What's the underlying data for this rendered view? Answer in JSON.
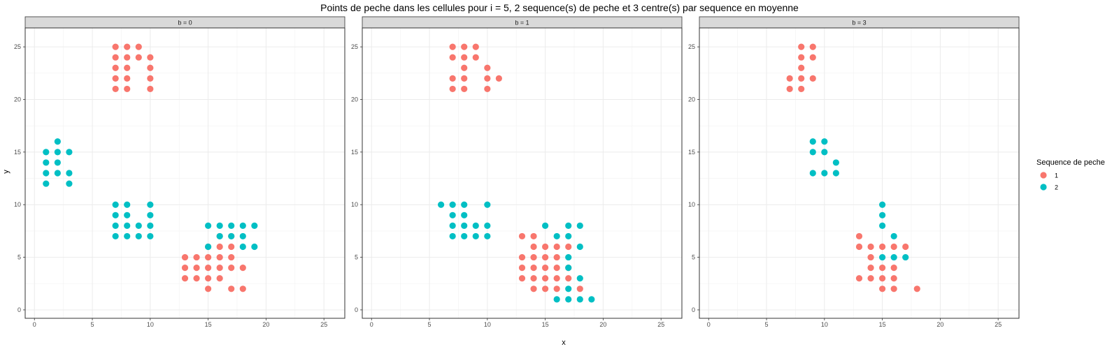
{
  "chart_data": {
    "type": "scatter",
    "title": "Points de peche dans les cellules pour i = 5, 2 sequence(s) de peche et 3 centre(s) par sequence en moyenne",
    "xlabel": "x",
    "ylabel": "y",
    "xlim": [
      -0.8,
      26.8
    ],
    "ylim": [
      -0.8,
      26.8
    ],
    "xticks": [
      0,
      5,
      10,
      15,
      20,
      25
    ],
    "yticks": [
      0,
      5,
      10,
      15,
      20,
      25
    ],
    "grid": true,
    "legend": {
      "title": "Sequence de peche",
      "position": "right",
      "entries": [
        {
          "label": "1",
          "color": "#F8766D"
        },
        {
          "label": "2",
          "color": "#00BFC4"
        }
      ]
    },
    "panels": [
      {
        "label": "b = 0",
        "series": [
          {
            "name": "1",
            "points": [
              [
                7,
                25
              ],
              [
                8,
                25
              ],
              [
                9,
                25
              ],
              [
                7,
                24
              ],
              [
                8,
                24
              ],
              [
                9,
                24
              ],
              [
                10,
                24
              ],
              [
                7,
                23
              ],
              [
                8,
                23
              ],
              [
                10,
                23
              ],
              [
                7,
                22
              ],
              [
                8,
                22
              ],
              [
                10,
                22
              ],
              [
                7,
                21
              ],
              [
                8,
                21
              ],
              [
                10,
                21
              ],
              [
                16,
                7
              ],
              [
                17,
                7
              ],
              [
                15,
                6
              ],
              [
                16,
                6
              ],
              [
                17,
                6
              ],
              [
                13,
                5
              ],
              [
                14,
                5
              ],
              [
                15,
                5
              ],
              [
                16,
                5
              ],
              [
                17,
                5
              ],
              [
                13,
                4
              ],
              [
                14,
                4
              ],
              [
                15,
                4
              ],
              [
                16,
                4
              ],
              [
                17,
                4
              ],
              [
                18,
                4
              ],
              [
                13,
                3
              ],
              [
                14,
                3
              ],
              [
                15,
                3
              ],
              [
                16,
                3
              ],
              [
                15,
                2
              ],
              [
                17,
                2
              ],
              [
                18,
                2
              ]
            ]
          },
          {
            "name": "2",
            "points": [
              [
                2,
                16
              ],
              [
                1,
                15
              ],
              [
                2,
                15
              ],
              [
                3,
                15
              ],
              [
                1,
                14
              ],
              [
                2,
                14
              ],
              [
                1,
                13
              ],
              [
                2,
                13
              ],
              [
                3,
                13
              ],
              [
                1,
                12
              ],
              [
                3,
                12
              ],
              [
                7,
                10
              ],
              [
                8,
                10
              ],
              [
                10,
                10
              ],
              [
                7,
                9
              ],
              [
                8,
                9
              ],
              [
                10,
                9
              ],
              [
                7,
                8
              ],
              [
                8,
                8
              ],
              [
                9,
                8
              ],
              [
                10,
                8
              ],
              [
                7,
                7
              ],
              [
                8,
                7
              ],
              [
                9,
                7
              ],
              [
                10,
                7
              ],
              [
                15,
                8
              ],
              [
                16,
                8
              ],
              [
                17,
                8
              ],
              [
                18,
                8
              ],
              [
                19,
                8
              ],
              [
                16,
                7
              ],
              [
                17,
                7
              ],
              [
                18,
                7
              ],
              [
                15,
                6
              ],
              [
                18,
                6
              ],
              [
                19,
                6
              ]
            ]
          }
        ]
      },
      {
        "label": "b = 1",
        "series": [
          {
            "name": "1",
            "points": [
              [
                7,
                25
              ],
              [
                8,
                25
              ],
              [
                9,
                25
              ],
              [
                7,
                24
              ],
              [
                8,
                24
              ],
              [
                9,
                24
              ],
              [
                8,
                23
              ],
              [
                10,
                23
              ],
              [
                7,
                22
              ],
              [
                8,
                22
              ],
              [
                10,
                22
              ],
              [
                11,
                22
              ],
              [
                7,
                21
              ],
              [
                8,
                21
              ],
              [
                10,
                21
              ],
              [
                13,
                7
              ],
              [
                14,
                7
              ],
              [
                14,
                6
              ],
              [
                15,
                6
              ],
              [
                16,
                6
              ],
              [
                17,
                6
              ],
              [
                13,
                5
              ],
              [
                14,
                5
              ],
              [
                15,
                5
              ],
              [
                16,
                5
              ],
              [
                13,
                4
              ],
              [
                14,
                4
              ],
              [
                15,
                4
              ],
              [
                16,
                4
              ],
              [
                17,
                4
              ],
              [
                13,
                3
              ],
              [
                14,
                3
              ],
              [
                15,
                3
              ],
              [
                16,
                3
              ],
              [
                17,
                3
              ],
              [
                14,
                2
              ],
              [
                15,
                2
              ],
              [
                16,
                2
              ],
              [
                18,
                2
              ]
            ]
          },
          {
            "name": "2",
            "points": [
              [
                6,
                10
              ],
              [
                7,
                10
              ],
              [
                8,
                10
              ],
              [
                10,
                10
              ],
              [
                7,
                9
              ],
              [
                8,
                9
              ],
              [
                7,
                8
              ],
              [
                8,
                8
              ],
              [
                9,
                8
              ],
              [
                10,
                8
              ],
              [
                7,
                7
              ],
              [
                8,
                7
              ],
              [
                9,
                7
              ],
              [
                10,
                7
              ],
              [
                15,
                8
              ],
              [
                17,
                8
              ],
              [
                18,
                8
              ],
              [
                16,
                7
              ],
              [
                17,
                7
              ],
              [
                18,
                6
              ],
              [
                17,
                5
              ],
              [
                17,
                4
              ],
              [
                18,
                3
              ],
              [
                17,
                2
              ],
              [
                16,
                1
              ],
              [
                17,
                1
              ],
              [
                18,
                1
              ],
              [
                19,
                1
              ]
            ]
          }
        ]
      },
      {
        "label": "b = 3",
        "series": [
          {
            "name": "1",
            "points": [
              [
                8,
                25
              ],
              [
                9,
                25
              ],
              [
                8,
                24
              ],
              [
                9,
                24
              ],
              [
                8,
                23
              ],
              [
                7,
                22
              ],
              [
                8,
                22
              ],
              [
                9,
                22
              ],
              [
                7,
                21
              ],
              [
                8,
                21
              ],
              [
                13,
                7
              ],
              [
                13,
                6
              ],
              [
                14,
                6
              ],
              [
                15,
                6
              ],
              [
                16,
                6
              ],
              [
                17,
                6
              ],
              [
                14,
                5
              ],
              [
                14,
                4
              ],
              [
                15,
                4
              ],
              [
                16,
                4
              ],
              [
                13,
                3
              ],
              [
                14,
                3
              ],
              [
                15,
                3
              ],
              [
                16,
                3
              ],
              [
                15,
                2
              ],
              [
                16,
                2
              ],
              [
                18,
                2
              ]
            ]
          },
          {
            "name": "2",
            "points": [
              [
                9,
                16
              ],
              [
                10,
                16
              ],
              [
                9,
                15
              ],
              [
                10,
                15
              ],
              [
                11,
                14
              ],
              [
                9,
                13
              ],
              [
                10,
                13
              ],
              [
                11,
                13
              ],
              [
                15,
                10
              ],
              [
                15,
                9
              ],
              [
                15,
                8
              ],
              [
                16,
                7
              ],
              [
                15,
                5
              ],
              [
                16,
                5
              ],
              [
                17,
                5
              ]
            ]
          }
        ]
      }
    ]
  }
}
